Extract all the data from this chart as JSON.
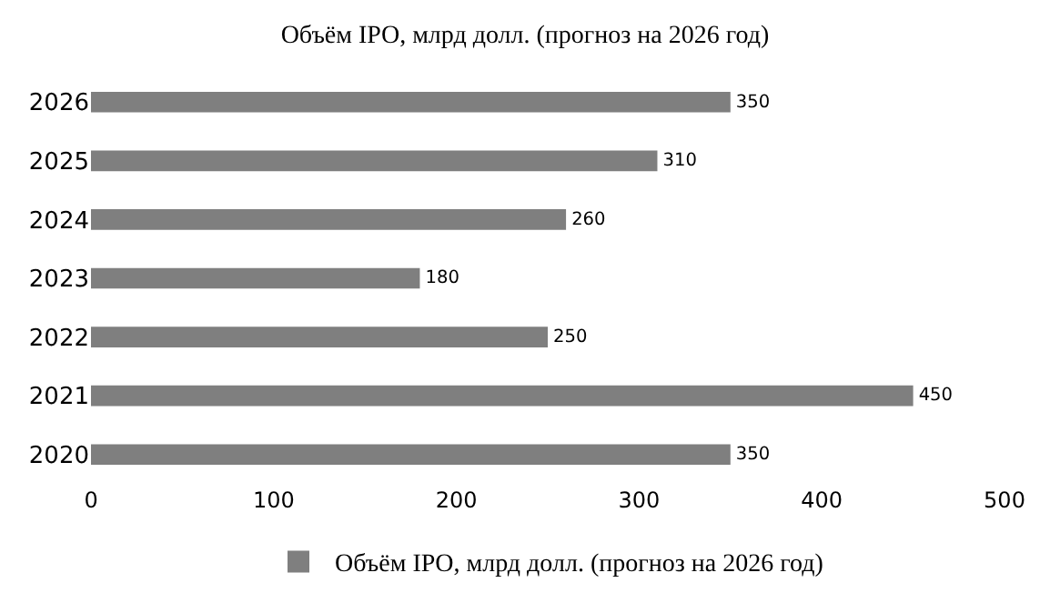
{
  "chart_data": {
    "type": "bar",
    "orientation": "horizontal",
    "title": "Объём IPO, млрд долл. (прогноз на 2026 год)",
    "categories": [
      "2026",
      "2025",
      "2024",
      "2023",
      "2022",
      "2021",
      "2020"
    ],
    "series": [
      {
        "name": "Объём IPO, млрд долл. (прогноз на 2026 год)",
        "color": "#7f7f7f",
        "values": [
          350,
          310,
          260,
          180,
          250,
          450,
          350
        ]
      }
    ],
    "xlim": [
      0,
      500
    ],
    "xticks": [
      0,
      100,
      200,
      300,
      400,
      500
    ],
    "data_labels": true,
    "legend": "bottom",
    "grid": false
  }
}
